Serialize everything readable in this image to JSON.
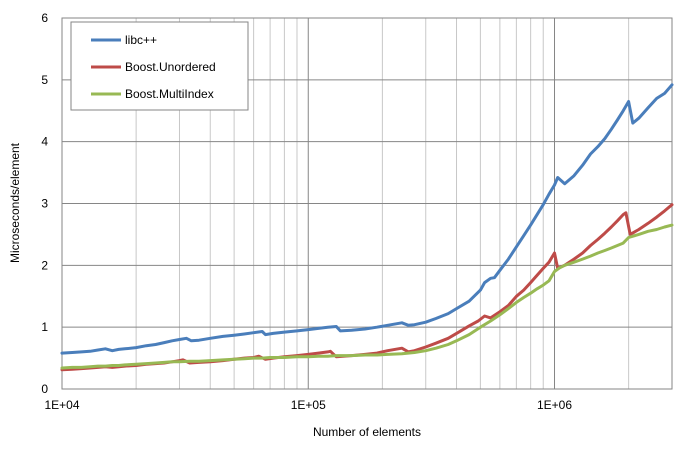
{
  "chart_data": {
    "type": "line",
    "title": "",
    "xlabel": "Number of elements",
    "ylabel": "Microseconds/element",
    "x_scale": "log",
    "xlim": [
      10000,
      3000000
    ],
    "ylim": [
      0,
      6
    ],
    "x_ticks": [
      10000,
      100000,
      1000000
    ],
    "x_tick_labels": [
      "1E+04",
      "1E+05",
      "1E+06"
    ],
    "y_ticks": [
      0,
      1,
      2,
      3,
      4,
      5,
      6
    ],
    "y_tick_labels": [
      "0",
      "1",
      "2",
      "3",
      "4",
      "5",
      "6"
    ],
    "grid": true,
    "legend_position": "top-left",
    "series": [
      {
        "name": "libc++",
        "color": "#4a7ebb",
        "points": [
          [
            10000,
            0.58
          ],
          [
            11000,
            0.59
          ],
          [
            12000,
            0.6
          ],
          [
            13000,
            0.61
          ],
          [
            14000,
            0.63
          ],
          [
            15000,
            0.65
          ],
          [
            16000,
            0.62
          ],
          [
            17000,
            0.64
          ],
          [
            18000,
            0.65
          ],
          [
            20000,
            0.67
          ],
          [
            22000,
            0.7
          ],
          [
            24000,
            0.72
          ],
          [
            26000,
            0.75
          ],
          [
            28000,
            0.78
          ],
          [
            30000,
            0.8
          ],
          [
            32000,
            0.82
          ],
          [
            33500,
            0.78
          ],
          [
            36000,
            0.79
          ],
          [
            40000,
            0.82
          ],
          [
            45000,
            0.85
          ],
          [
            50000,
            0.87
          ],
          [
            55000,
            0.89
          ],
          [
            60000,
            0.91
          ],
          [
            65000,
            0.93
          ],
          [
            67000,
            0.88
          ],
          [
            72000,
            0.9
          ],
          [
            80000,
            0.92
          ],
          [
            90000,
            0.94
          ],
          [
            100000,
            0.96
          ],
          [
            110000,
            0.98
          ],
          [
            120000,
            1.0
          ],
          [
            130000,
            1.01
          ],
          [
            135000,
            0.94
          ],
          [
            150000,
            0.95
          ],
          [
            170000,
            0.97
          ],
          [
            190000,
            1.0
          ],
          [
            210000,
            1.03
          ],
          [
            240000,
            1.07
          ],
          [
            255000,
            1.03
          ],
          [
            270000,
            1.04
          ],
          [
            300000,
            1.08
          ],
          [
            330000,
            1.14
          ],
          [
            370000,
            1.22
          ],
          [
            400000,
            1.3
          ],
          [
            450000,
            1.42
          ],
          [
            500000,
            1.6
          ],
          [
            520000,
            1.72
          ],
          [
            550000,
            1.79
          ],
          [
            570000,
            1.8
          ],
          [
            600000,
            1.92
          ],
          [
            650000,
            2.1
          ],
          [
            700000,
            2.3
          ],
          [
            750000,
            2.48
          ],
          [
            800000,
            2.65
          ],
          [
            850000,
            2.82
          ],
          [
            900000,
            2.98
          ],
          [
            950000,
            3.15
          ],
          [
            1000000,
            3.3
          ],
          [
            1030000,
            3.42
          ],
          [
            1100000,
            3.32
          ],
          [
            1200000,
            3.45
          ],
          [
            1300000,
            3.62
          ],
          [
            1400000,
            3.8
          ],
          [
            1500000,
            3.92
          ],
          [
            1600000,
            4.05
          ],
          [
            1700000,
            4.2
          ],
          [
            1800000,
            4.35
          ],
          [
            1900000,
            4.5
          ],
          [
            2000000,
            4.65
          ],
          [
            2080000,
            4.3
          ],
          [
            2200000,
            4.38
          ],
          [
            2400000,
            4.55
          ],
          [
            2600000,
            4.7
          ],
          [
            2800000,
            4.78
          ],
          [
            3000000,
            4.92
          ]
        ]
      },
      {
        "name": "Boost.Unordered",
        "color": "#be4b48",
        "points": [
          [
            10000,
            0.31
          ],
          [
            11000,
            0.32
          ],
          [
            12000,
            0.33
          ],
          [
            13000,
            0.34
          ],
          [
            14000,
            0.35
          ],
          [
            15000,
            0.36
          ],
          [
            16000,
            0.35
          ],
          [
            17000,
            0.36
          ],
          [
            18000,
            0.37
          ],
          [
            20000,
            0.38
          ],
          [
            22000,
            0.4
          ],
          [
            24000,
            0.41
          ],
          [
            26000,
            0.42
          ],
          [
            28000,
            0.44
          ],
          [
            30000,
            0.46
          ],
          [
            31000,
            0.47
          ],
          [
            33000,
            0.42
          ],
          [
            36000,
            0.43
          ],
          [
            40000,
            0.44
          ],
          [
            45000,
            0.46
          ],
          [
            50000,
            0.48
          ],
          [
            55000,
            0.5
          ],
          [
            60000,
            0.51
          ],
          [
            63000,
            0.53
          ],
          [
            67000,
            0.48
          ],
          [
            72000,
            0.5
          ],
          [
            80000,
            0.52
          ],
          [
            90000,
            0.54
          ],
          [
            100000,
            0.56
          ],
          [
            110000,
            0.58
          ],
          [
            120000,
            0.6
          ],
          [
            123000,
            0.61
          ],
          [
            130000,
            0.52
          ],
          [
            150000,
            0.54
          ],
          [
            170000,
            0.56
          ],
          [
            190000,
            0.58
          ],
          [
            210000,
            0.62
          ],
          [
            240000,
            0.66
          ],
          [
            255000,
            0.6
          ],
          [
            270000,
            0.62
          ],
          [
            300000,
            0.68
          ],
          [
            330000,
            0.74
          ],
          [
            370000,
            0.82
          ],
          [
            400000,
            0.9
          ],
          [
            450000,
            1.02
          ],
          [
            490000,
            1.1
          ],
          [
            520000,
            1.18
          ],
          [
            550000,
            1.15
          ],
          [
            600000,
            1.25
          ],
          [
            650000,
            1.35
          ],
          [
            700000,
            1.5
          ],
          [
            750000,
            1.6
          ],
          [
            800000,
            1.72
          ],
          [
            850000,
            1.84
          ],
          [
            900000,
            1.95
          ],
          [
            950000,
            2.05
          ],
          [
            1000000,
            2.2
          ],
          [
            1030000,
            1.95
          ],
          [
            1100000,
            2.0
          ],
          [
            1200000,
            2.1
          ],
          [
            1300000,
            2.2
          ],
          [
            1400000,
            2.32
          ],
          [
            1500000,
            2.42
          ],
          [
            1600000,
            2.52
          ],
          [
            1700000,
            2.62
          ],
          [
            1800000,
            2.72
          ],
          [
            1900000,
            2.82
          ],
          [
            1950000,
            2.85
          ],
          [
            2030000,
            2.5
          ],
          [
            2200000,
            2.58
          ],
          [
            2400000,
            2.68
          ],
          [
            2600000,
            2.78
          ],
          [
            2800000,
            2.88
          ],
          [
            3000000,
            2.98
          ]
        ]
      },
      {
        "name": "Boost.MultiIndex",
        "color": "#98b954",
        "points": [
          [
            10000,
            0.34
          ],
          [
            11000,
            0.35
          ],
          [
            12000,
            0.35
          ],
          [
            13000,
            0.36
          ],
          [
            14000,
            0.37
          ],
          [
            15000,
            0.37
          ],
          [
            16000,
            0.38
          ],
          [
            17000,
            0.38
          ],
          [
            18000,
            0.39
          ],
          [
            20000,
            0.4
          ],
          [
            22000,
            0.41
          ],
          [
            24000,
            0.42
          ],
          [
            26000,
            0.43
          ],
          [
            28000,
            0.44
          ],
          [
            30000,
            0.44
          ],
          [
            33000,
            0.45
          ],
          [
            36000,
            0.45
          ],
          [
            40000,
            0.46
          ],
          [
            45000,
            0.47
          ],
          [
            50000,
            0.48
          ],
          [
            55000,
            0.49
          ],
          [
            60000,
            0.5
          ],
          [
            65000,
            0.5
          ],
          [
            70000,
            0.51
          ],
          [
            80000,
            0.51
          ],
          [
            90000,
            0.52
          ],
          [
            100000,
            0.52
          ],
          [
            110000,
            0.53
          ],
          [
            120000,
            0.53
          ],
          [
            130000,
            0.54
          ],
          [
            150000,
            0.54
          ],
          [
            170000,
            0.55
          ],
          [
            190000,
            0.55
          ],
          [
            210000,
            0.56
          ],
          [
            240000,
            0.57
          ],
          [
            270000,
            0.59
          ],
          [
            300000,
            0.62
          ],
          [
            330000,
            0.66
          ],
          [
            370000,
            0.72
          ],
          [
            400000,
            0.78
          ],
          [
            450000,
            0.88
          ],
          [
            500000,
            1.0
          ],
          [
            550000,
            1.1
          ],
          [
            600000,
            1.2
          ],
          [
            650000,
            1.3
          ],
          [
            700000,
            1.4
          ],
          [
            750000,
            1.48
          ],
          [
            800000,
            1.55
          ],
          [
            850000,
            1.62
          ],
          [
            900000,
            1.68
          ],
          [
            950000,
            1.75
          ],
          [
            1000000,
            1.9
          ],
          [
            1050000,
            1.96
          ],
          [
            1100000,
            2.0
          ],
          [
            1200000,
            2.05
          ],
          [
            1300000,
            2.1
          ],
          [
            1400000,
            2.15
          ],
          [
            1500000,
            2.2
          ],
          [
            1600000,
            2.24
          ],
          [
            1700000,
            2.28
          ],
          [
            1800000,
            2.32
          ],
          [
            1900000,
            2.36
          ],
          [
            2000000,
            2.45
          ],
          [
            2200000,
            2.5
          ],
          [
            2400000,
            2.55
          ],
          [
            2600000,
            2.58
          ],
          [
            2800000,
            2.62
          ],
          [
            3000000,
            2.65
          ]
        ]
      }
    ]
  }
}
